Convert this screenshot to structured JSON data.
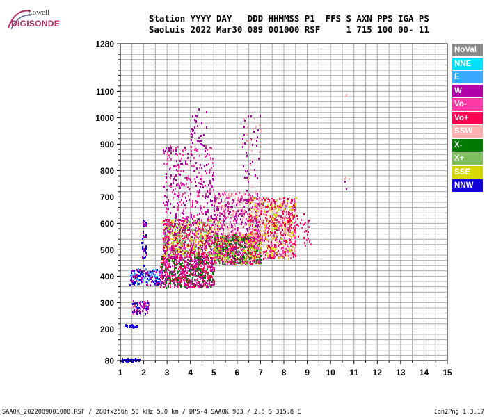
{
  "logo": {
    "line1": "Lowell",
    "line2": "DIGISONDE"
  },
  "header": {
    "line1": "Station YYYY DAY   DDD HHMMSS P1  FFS S AXN PPS IGA PS",
    "line2": "SaoLuis 2022 Mar30 089 001000 RSF     1 715 100 00- 11"
  },
  "legend": [
    {
      "label": "NoVal",
      "bg": "#8c8c8c",
      "fg": "#ffffff"
    },
    {
      "label": "NNE",
      "bg": "#00e0ff",
      "fg": "#ffffff"
    },
    {
      "label": "E",
      "bg": "#3aa8ff",
      "fg": "#ffffff"
    },
    {
      "label": "W",
      "bg": "#b000a8",
      "fg": "#ffffff"
    },
    {
      "label": "Vo-",
      "bg": "#ff3aa8",
      "fg": "#ffffff"
    },
    {
      "label": "Vo+",
      "bg": "#ff0050",
      "fg": "#ffffff"
    },
    {
      "label": "SSW",
      "bg": "#ffb0b0",
      "fg": "#ffffff"
    },
    {
      "label": "X-",
      "bg": "#007a00",
      "fg": "#ffffff"
    },
    {
      "label": "X+",
      "bg": "#80c060",
      "fg": "#ffffff"
    },
    {
      "label": "SSE",
      "bg": "#d8d800",
      "fg": "#ffffff"
    },
    {
      "label": "NNW",
      "bg": "#1400d8",
      "fg": "#ffffff"
    }
  ],
  "footer": {
    "left": "SAA0K_2022089001000.RSF / 280fx256h 50 kHz 5.0 km / DPS-4 SAA0K 903 / 2.6 S 315.8 E",
    "right": "Ion2Png 1.3.17"
  },
  "chart_data": {
    "type": "scatter",
    "xlim": [
      1,
      15
    ],
    "ylim": [
      80,
      1280
    ],
    "x_ticks": [
      "1",
      "2",
      "3",
      "4",
      "5",
      "6",
      "7",
      "8",
      "9",
      "10",
      "11",
      "12",
      "13",
      "14",
      "15"
    ],
    "y_ticks": [
      {
        "value": 80,
        "label": "80"
      },
      {
        "value": 200,
        "label": "200"
      },
      {
        "value": 300,
        "label": "300"
      },
      {
        "value": 400,
        "label": "400"
      },
      {
        "value": 500,
        "label": "500"
      },
      {
        "value": 600,
        "label": "600"
      },
      {
        "value": 700,
        "label": "700"
      },
      {
        "value": 800,
        "label": "800"
      },
      {
        "value": 900,
        "label": "900"
      },
      {
        "value": 1000,
        "label": "1000"
      },
      {
        "value": 1100,
        "label": "1100"
      },
      {
        "value": 1280,
        "label": "1280"
      }
    ],
    "grid": true,
    "clusters": [
      {
        "x": [
          1.0,
          1.8
        ],
        "y": [
          80,
          90
        ],
        "density": 60,
        "colors": [
          "#1400d8"
        ]
      },
      {
        "x": [
          1.0,
          1.7
        ],
        "y": [
          210,
          220
        ],
        "density": 20,
        "colors": [
          "#1400d8"
        ]
      },
      {
        "x": [
          1.5,
          2.2
        ],
        "y": [
          260,
          310
        ],
        "density": 80,
        "colors": [
          "#1400d8",
          "#b000a8",
          "#ff3aa8"
        ]
      },
      {
        "x": [
          1.4,
          2.8
        ],
        "y": [
          370,
          430
        ],
        "density": 180,
        "colors": [
          "#1400d8",
          "#b000a8",
          "#3aa8ff"
        ]
      },
      {
        "x": [
          1.9,
          2.1
        ],
        "y": [
          430,
          620
        ],
        "density": 40,
        "colors": [
          "#1400d8",
          "#b000a8"
        ]
      },
      {
        "x": [
          2.7,
          5.0
        ],
        "y": [
          360,
          480
        ],
        "density": 700,
        "colors": [
          "#ff0050",
          "#ff3aa8",
          "#b000a8",
          "#007a00"
        ]
      },
      {
        "x": [
          2.8,
          5.2
        ],
        "y": [
          480,
          620
        ],
        "density": 800,
        "colors": [
          "#b000a8",
          "#ff3aa8",
          "#ff0050",
          "#d8d800",
          "#80c060"
        ]
      },
      {
        "x": [
          2.8,
          5.0
        ],
        "y": [
          620,
          900
        ],
        "density": 300,
        "colors": [
          "#b000a8",
          "#ff3aa8"
        ]
      },
      {
        "x": [
          4.0,
          4.7
        ],
        "y": [
          900,
          1050
        ],
        "density": 30,
        "colors": [
          "#b000a8"
        ]
      },
      {
        "x": [
          5.0,
          7.0
        ],
        "y": [
          450,
          560
        ],
        "density": 900,
        "colors": [
          "#d8d800",
          "#80c060",
          "#b000a8",
          "#ff3aa8",
          "#ff0050",
          "#007a00"
        ]
      },
      {
        "x": [
          5.0,
          7.0
        ],
        "y": [
          560,
          720
        ],
        "density": 400,
        "colors": [
          "#b000a8",
          "#ff3aa8",
          "#ffb0b0"
        ]
      },
      {
        "x": [
          6.2,
          7.0
        ],
        "y": [
          720,
          1020
        ],
        "density": 60,
        "colors": [
          "#b000a8",
          "#ffb0b0"
        ]
      },
      {
        "x": [
          6.5,
          8.5
        ],
        "y": [
          470,
          700
        ],
        "density": 700,
        "colors": [
          "#ff0050",
          "#ff3aa8",
          "#ffb0b0",
          "#d8d800"
        ]
      },
      {
        "x": [
          8.0,
          9.2
        ],
        "y": [
          520,
          640
        ],
        "density": 50,
        "colors": [
          "#ff0050",
          "#ff3aa8"
        ]
      },
      {
        "x": [
          10.6,
          10.8
        ],
        "y": [
          730,
          780
        ],
        "density": 6,
        "colors": [
          "#b000a8",
          "#ffb0b0"
        ]
      },
      {
        "x": [
          10.6,
          10.8
        ],
        "y": [
          1080,
          1090
        ],
        "density": 2,
        "colors": [
          "#ffb0b0"
        ]
      }
    ]
  }
}
